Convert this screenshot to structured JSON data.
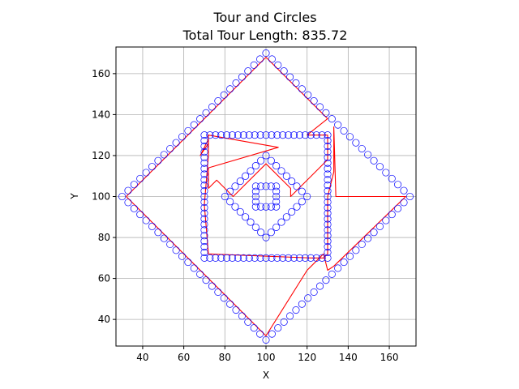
{
  "chart_data": {
    "type": "scatter",
    "title": "Tour and Circles",
    "subtitle": "Total Tour Length: 835.72",
    "xlabel": "X",
    "ylabel": "Y",
    "xlim": [
      27,
      173
    ],
    "ylim": [
      27,
      173
    ],
    "x_ticks": [
      40,
      60,
      80,
      100,
      120,
      140,
      160
    ],
    "y_ticks": [
      40,
      60,
      80,
      100,
      120,
      140,
      160
    ],
    "x_tick_labels": [
      "40",
      "60",
      "80",
      "100",
      "120",
      "140",
      "160"
    ],
    "y_tick_labels": [
      "40",
      "60",
      "80",
      "100",
      "120",
      "140",
      "160"
    ],
    "grid": true,
    "colors": {
      "points": "#0000ff",
      "tour": "#ff0000",
      "grid": "#b0b0b0"
    },
    "shapes": [
      {
        "kind": "diamond",
        "center": [
          100,
          100
        ],
        "radius": 70,
        "points_per_side": 24
      },
      {
        "kind": "square",
        "center": [
          100,
          100
        ],
        "half": 30,
        "points_per_side": 22
      },
      {
        "kind": "diamond",
        "center": [
          100,
          100
        ],
        "radius": 20,
        "points_per_side": 8
      },
      {
        "kind": "square",
        "center": [
          100,
          100
        ],
        "half": 5,
        "points_per_side": 4
      }
    ],
    "tour_path": [
      [
        32,
        100
      ],
      [
        100,
        168
      ],
      [
        130,
        138
      ],
      [
        120,
        130
      ],
      [
        130,
        130
      ],
      [
        130,
        118
      ],
      [
        112,
        100
      ],
      [
        112,
        104
      ],
      [
        100,
        116
      ],
      [
        84,
        100
      ],
      [
        76,
        108
      ],
      [
        72,
        104
      ],
      [
        72,
        114
      ],
      [
        106,
        124
      ],
      [
        72,
        130
      ],
      [
        72,
        126
      ],
      [
        68,
        120
      ],
      [
        72,
        128
      ],
      [
        72,
        120
      ],
      [
        70,
        96
      ],
      [
        72,
        72
      ],
      [
        122,
        70
      ],
      [
        128,
        70
      ],
      [
        130,
        72
      ],
      [
        130,
        100
      ],
      [
        133,
        112
      ],
      [
        133,
        134
      ],
      [
        134,
        100
      ],
      [
        168,
        100
      ],
      [
        133,
        66
      ],
      [
        130,
        64
      ],
      [
        128,
        72
      ],
      [
        120,
        64
      ],
      [
        100,
        32
      ],
      [
        32,
        100
      ]
    ]
  }
}
